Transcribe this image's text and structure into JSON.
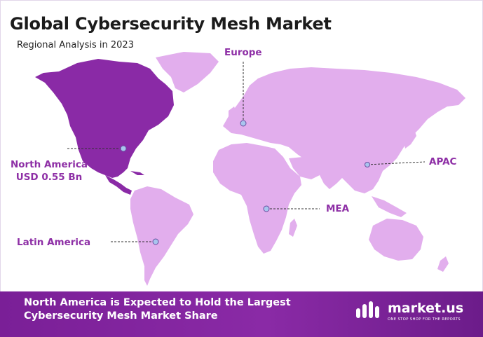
{
  "title": "Global Cybersecurity Mesh Market",
  "subtitle": "Regional Analysis in 2023",
  "regions": {
    "europe": "Europe",
    "north_america": "North America",
    "north_america_value": "USD 0.55 Bn",
    "apac": "APAC",
    "mea": "MEA",
    "latin_america": "Latin America"
  },
  "footer": {
    "line1": "North America is Expected to Hold the Largest",
    "line2": "Cybersecurity Mesh Market Share"
  },
  "logo": {
    "name": "market.us",
    "tagline": "ONE STOP SHOP FOR THE REPORTS"
  },
  "colors": {
    "highlight_region": "#8a2aa6",
    "other_regions": "#e2aeed",
    "label": "#8e2fa6",
    "footer": "#7a1f97"
  }
}
